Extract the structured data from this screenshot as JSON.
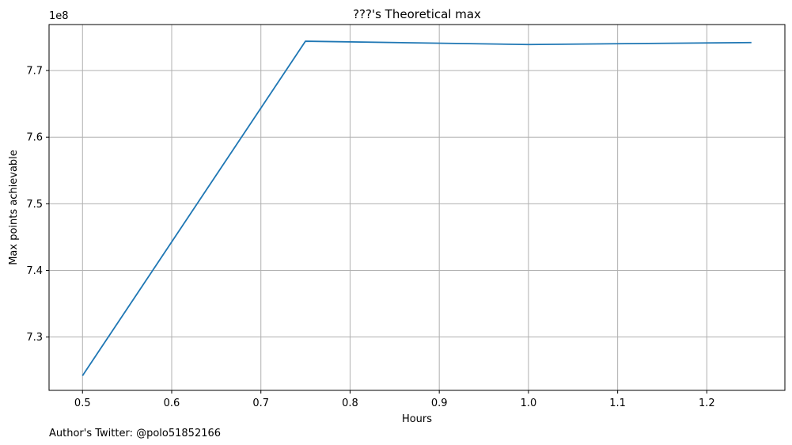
{
  "chart_data": {
    "type": "line",
    "title": "???'s Theoretical max",
    "xlabel": "Hours",
    "ylabel": "Max points achievable",
    "y_offset_label": "1e8",
    "x": [
      0.5,
      0.75,
      1.0,
      1.25
    ],
    "series": [
      {
        "name": "Max points achievable",
        "color": "#1f77b4",
        "values": [
          724200000,
          774400000,
          773900000,
          774200000
        ]
      }
    ],
    "xlim": [
      0.4625,
      1.2875
    ],
    "ylim": [
      722000000,
      776900000
    ],
    "x_ticks": [
      0.5,
      0.6,
      0.7,
      0.8,
      0.9,
      1.0,
      1.1,
      1.2
    ],
    "x_tick_labels": [
      "0.5",
      "0.6",
      "0.7",
      "0.8",
      "0.9",
      "1.0",
      "1.1",
      "1.2"
    ],
    "y_ticks": [
      730000000,
      740000000,
      750000000,
      760000000,
      770000000
    ],
    "y_tick_labels": [
      "7.3",
      "7.4",
      "7.5",
      "7.6",
      "7.7"
    ],
    "grid": true,
    "legend": "none"
  },
  "footer": {
    "text": "Author's Twitter: @polo51852166"
  }
}
